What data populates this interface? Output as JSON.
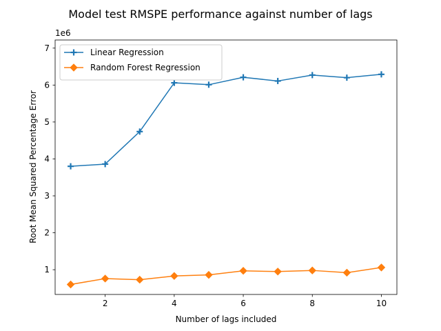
{
  "chart_data": {
    "type": "line",
    "title": "Model test RMSPE performance against number of lags",
    "xlabel": "Number of lags included",
    "ylabel": "Root Mean Squared Percentage Error",
    "y_offset_label": "1e6",
    "xlim": [
      0.55,
      10.45
    ],
    "ylim": [
      0.33,
      7.22
    ],
    "x_ticks": [
      2,
      4,
      6,
      8,
      10
    ],
    "y_ticks": [
      1,
      2,
      3,
      4,
      5,
      6,
      7
    ],
    "grid": false,
    "legend_position": "upper left",
    "x": [
      1,
      2,
      3,
      4,
      5,
      6,
      7,
      8,
      9,
      10
    ],
    "series": [
      {
        "name": "Linear Regression",
        "color": "#1f77b4",
        "marker": "plus",
        "values": [
          3.8,
          3.86,
          4.74,
          6.06,
          6.01,
          6.21,
          6.11,
          6.27,
          6.2,
          6.29
        ]
      },
      {
        "name": "Random Forest Regression",
        "color": "#ff7f0e",
        "marker": "diamond",
        "values": [
          0.6,
          0.76,
          0.73,
          0.83,
          0.86,
          0.97,
          0.95,
          0.98,
          0.92,
          1.06
        ]
      }
    ]
  }
}
